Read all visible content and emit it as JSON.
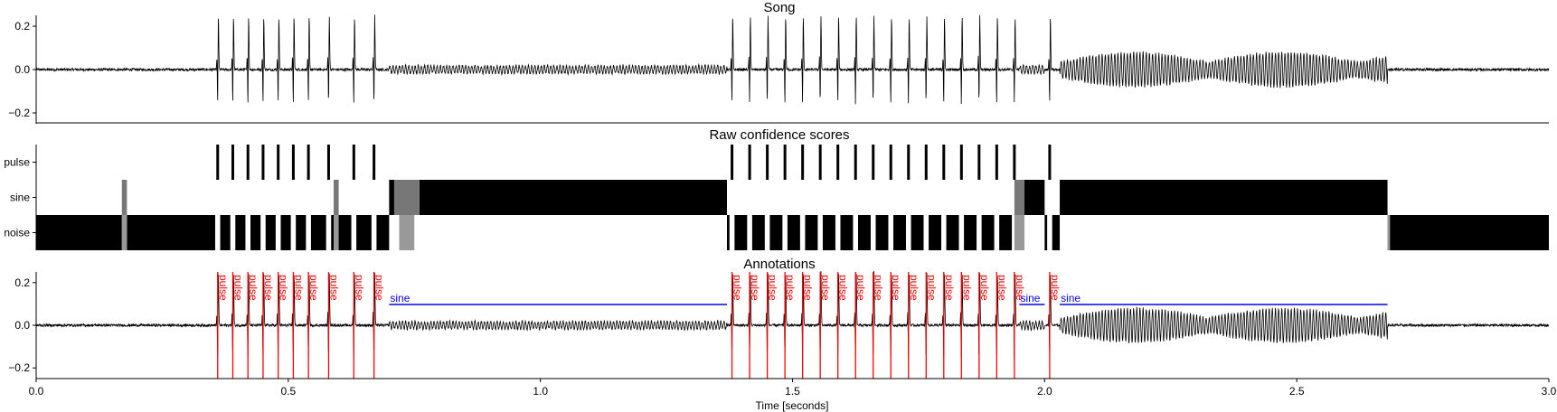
{
  "chart_data": [
    {
      "type": "line",
      "title": "Song",
      "xlim": [
        0.0,
        3.0
      ],
      "ylim": [
        -0.25,
        0.25
      ],
      "yticks": [
        -0.2,
        0.0,
        0.2
      ],
      "ytick_labels": [
        "−0.2",
        "0.0",
        "0.2"
      ],
      "series": [
        {
          "color": "#000000"
        }
      ]
    },
    {
      "type": "heatmap",
      "title": "Raw confidence scores",
      "xlim": [
        0.0,
        3.0
      ],
      "rows": [
        "pulse",
        "sine",
        "noise"
      ],
      "colormap": "white-to-black (0 = white, 1 = black)"
    },
    {
      "type": "line",
      "title": "Annotations",
      "xlim": [
        0.0,
        3.0
      ],
      "ylim": [
        -0.25,
        0.25
      ],
      "yticks": [
        -0.2,
        0.0,
        0.2
      ],
      "ytick_labels": [
        "−0.2",
        "0.0",
        "0.2"
      ],
      "xticks": [
        0.0,
        0.5,
        1.0,
        1.5,
        2.0,
        2.5,
        3.0
      ],
      "xtick_labels": [
        "0.0",
        "0.5",
        "1.0",
        "1.5",
        "2.0",
        "2.5",
        "3.0"
      ],
      "xlabel": "Time [seconds]",
      "annotations": {
        "pulse": {
          "label": "pulse",
          "color": "#ff0000",
          "times": [
            0.36,
            0.39,
            0.42,
            0.45,
            0.48,
            0.51,
            0.54,
            0.58,
            0.63,
            0.67,
            1.38,
            1.415,
            1.45,
            1.485,
            1.52,
            1.555,
            1.59,
            1.625,
            1.66,
            1.695,
            1.73,
            1.765,
            1.8,
            1.835,
            1.87,
            1.905,
            1.94,
            2.01
          ]
        },
        "sine": {
          "label": "sine",
          "color": "#0000ff",
          "segments": [
            [
              0.7,
              1.37
            ],
            [
              1.95,
              2.0
            ],
            [
              2.03,
              2.68
            ]
          ]
        }
      }
    }
  ],
  "heatmap_data": {
    "pulse_times": [
      0.36,
      0.39,
      0.42,
      0.45,
      0.48,
      0.51,
      0.54,
      0.58,
      0.63,
      0.67,
      1.38,
      1.415,
      1.45,
      1.485,
      1.52,
      1.555,
      1.59,
      1.625,
      1.66,
      1.695,
      1.73,
      1.765,
      1.8,
      1.835,
      1.87,
      1.905,
      1.94,
      2.01
    ],
    "sine_segments": [
      [
        0.7,
        0.71
      ],
      [
        0.76,
        1.37
      ],
      [
        1.96,
        2.0
      ],
      [
        2.03,
        2.68
      ]
    ],
    "sine_faint_segments": [
      [
        0.17,
        0.18
      ],
      [
        0.59,
        0.6
      ],
      [
        0.71,
        0.76
      ],
      [
        1.94,
        1.96
      ]
    ],
    "noise_segments": [
      [
        0.0,
        0.17
      ],
      [
        0.18,
        0.355
      ],
      [
        0.365,
        0.385
      ],
      [
        0.395,
        0.415
      ],
      [
        0.425,
        0.445
      ],
      [
        0.455,
        0.475
      ],
      [
        0.485,
        0.505
      ],
      [
        0.515,
        0.535
      ],
      [
        0.545,
        0.575
      ],
      [
        0.585,
        0.625
      ],
      [
        0.635,
        0.665
      ],
      [
        0.675,
        0.7
      ],
      [
        1.37,
        1.375
      ],
      [
        1.385,
        1.41
      ],
      [
        1.42,
        1.445
      ],
      [
        1.455,
        1.48
      ],
      [
        1.49,
        1.515
      ],
      [
        1.525,
        1.55
      ],
      [
        1.56,
        1.585
      ],
      [
        1.595,
        1.62
      ],
      [
        1.63,
        1.655
      ],
      [
        1.665,
        1.69
      ],
      [
        1.7,
        1.725
      ],
      [
        1.735,
        1.76
      ],
      [
        1.77,
        1.795
      ],
      [
        1.805,
        1.83
      ],
      [
        1.84,
        1.865
      ],
      [
        1.875,
        1.9
      ],
      [
        1.91,
        1.935
      ],
      [
        2.0,
        2.005
      ],
      [
        2.015,
        2.03
      ],
      [
        2.68,
        3.0
      ]
    ]
  }
}
